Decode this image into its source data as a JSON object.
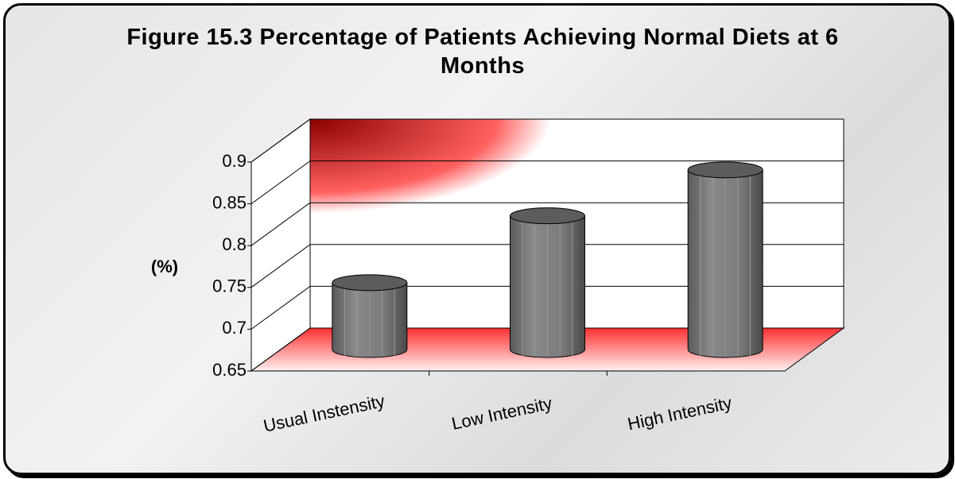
{
  "chart_data": {
    "type": "bar",
    "title": "Figure 15.3 Percentage of Patients Achieving Normal Diets at 6 Months",
    "y_label": "(%)",
    "categories": [
      "Usual Instensity",
      "Low Intensity",
      "High Intensity"
    ],
    "values": [
      0.73,
      0.81,
      0.865
    ],
    "color": "#707070",
    "ylim": [
      0.65,
      0.9
    ],
    "yticks": [
      0.65,
      0.7,
      0.75,
      0.8,
      0.85,
      0.9
    ],
    "grid": true
  }
}
